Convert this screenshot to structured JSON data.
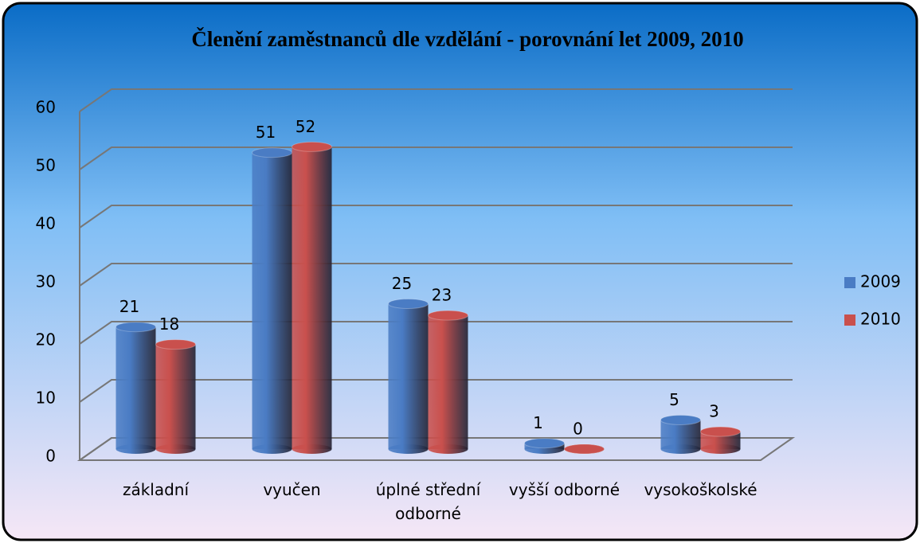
{
  "chart_data": {
    "type": "bar3d",
    "title": "Členění zaměstnanců dle vzdělání - porovnání let 2009, 2010",
    "categories": [
      "základní",
      "vyučen",
      "úplné střední odborné",
      "vyšší odborné",
      "vysokoškolské"
    ],
    "series": [
      {
        "name": "2009",
        "color": "#4a7cc4",
        "values": [
          21,
          51,
          25,
          1,
          5
        ]
      },
      {
        "name": "2010",
        "color": "#c9504d",
        "values": [
          18,
          52,
          23,
          0,
          3
        ]
      }
    ],
    "ylim": [
      0,
      60
    ],
    "yticks": [
      0,
      10,
      20,
      30,
      40,
      50,
      60
    ],
    "grid": true,
    "legend": "right"
  }
}
